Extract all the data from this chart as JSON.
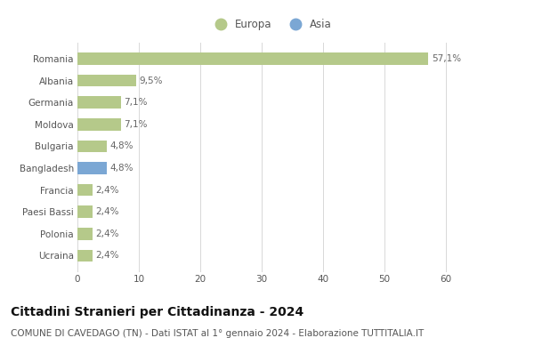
{
  "categories": [
    "Ucraina",
    "Polonia",
    "Paesi Bassi",
    "Francia",
    "Bangladesh",
    "Bulgaria",
    "Moldova",
    "Germania",
    "Albania",
    "Romania"
  ],
  "values": [
    2.4,
    2.4,
    2.4,
    2.4,
    4.8,
    4.8,
    7.1,
    7.1,
    9.5,
    57.1
  ],
  "labels": [
    "2,4%",
    "2,4%",
    "2,4%",
    "2,4%",
    "4,8%",
    "4,8%",
    "7,1%",
    "7,1%",
    "9,5%",
    "57,1%"
  ],
  "colors": [
    "#b5c98a",
    "#b5c98a",
    "#b5c98a",
    "#b5c98a",
    "#7ba7d4",
    "#b5c98a",
    "#b5c98a",
    "#b5c98a",
    "#b5c98a",
    "#b5c98a"
  ],
  "europa_color": "#b5c98a",
  "asia_color": "#7ba7d4",
  "title": "Cittadini Stranieri per Cittadinanza - 2024",
  "subtitle": "COMUNE DI CAVEDAGO (TN) - Dati ISTAT al 1° gennaio 2024 - Elaborazione TUTTITALIA.IT",
  "legend_europa": "Europa",
  "legend_asia": "Asia",
  "xlim": [
    0,
    63
  ],
  "xticks": [
    0,
    10,
    20,
    30,
    40,
    50,
    60
  ],
  "background_color": "#ffffff",
  "grid_color": "#d8d8d8",
  "bar_height": 0.55,
  "title_fontsize": 10,
  "subtitle_fontsize": 7.5,
  "label_fontsize": 7.5,
  "tick_fontsize": 7.5,
  "legend_fontsize": 8.5
}
